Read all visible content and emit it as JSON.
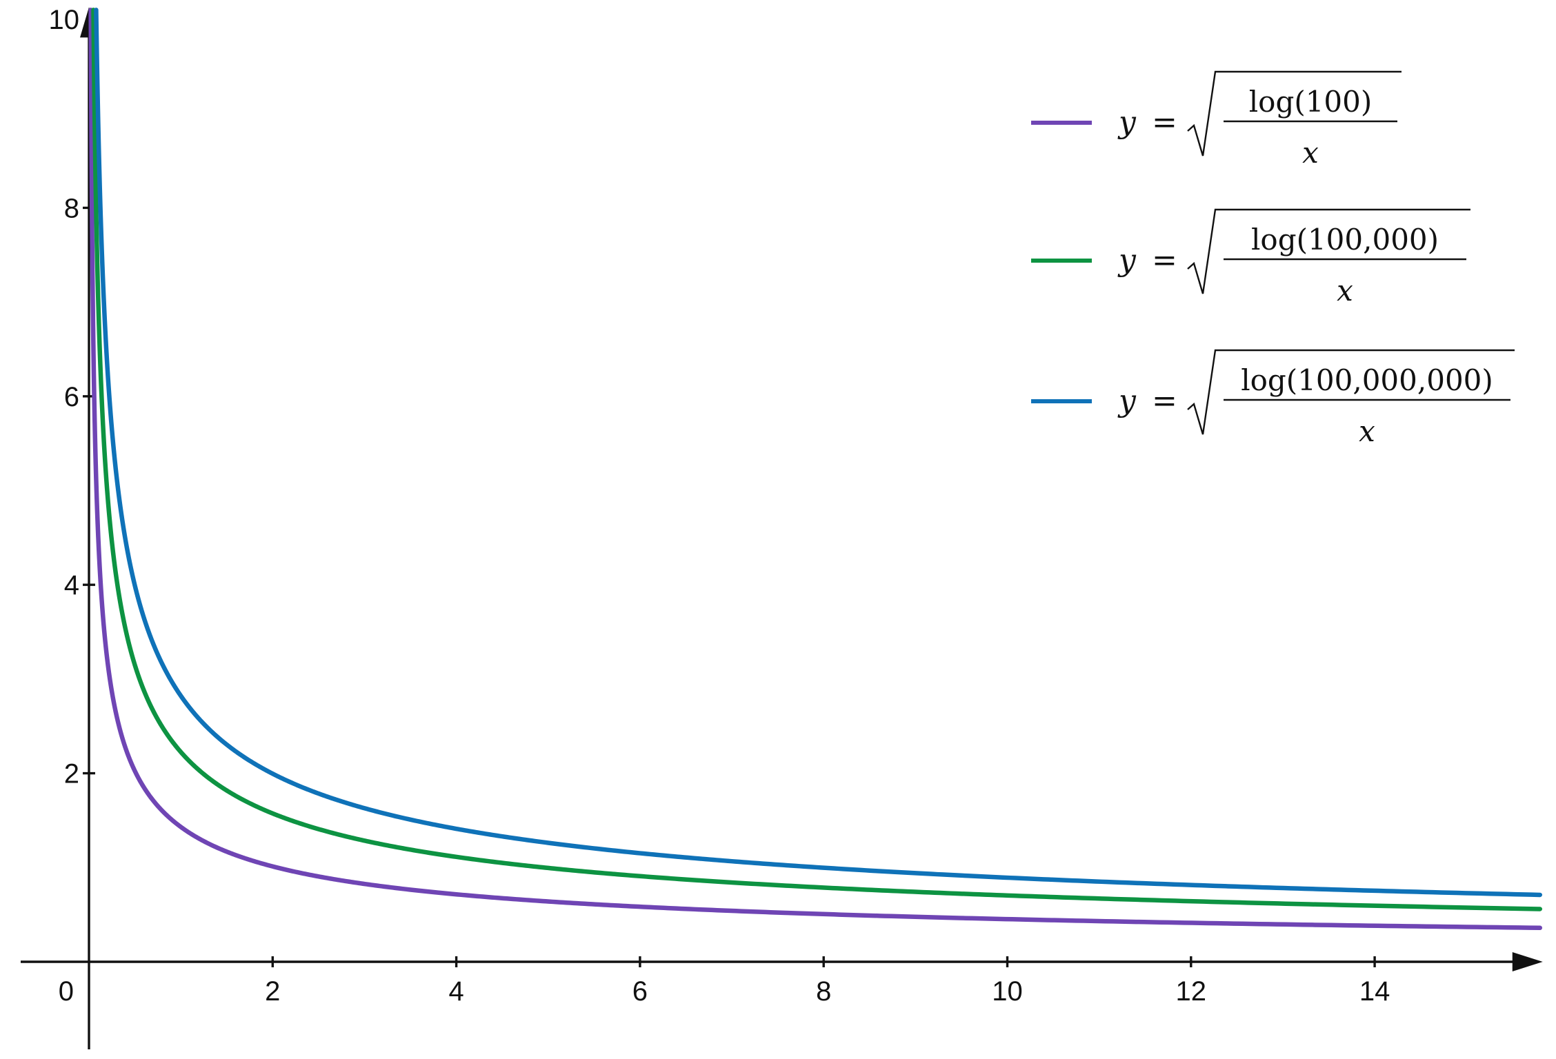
{
  "chart_data": {
    "type": "line",
    "title": "",
    "xlabel": "",
    "ylabel": "",
    "xlim": [
      -1.5,
      15.8
    ],
    "ylim": [
      -0.9,
      10.1
    ],
    "x_ticks": [
      2,
      4,
      6,
      8,
      10,
      12,
      14
    ],
    "y_ticks": [
      2,
      4,
      6,
      8,
      10
    ],
    "origin_label": "0",
    "legend_position": "top-right",
    "grid": false,
    "x_range_plotted": [
      0.03,
      15.8
    ],
    "series": [
      {
        "name": "y = √(log(100)/x)",
        "label_parts": {
          "lhs": "y",
          "eq": "=",
          "numerator": "log(100)",
          "denominator": "x"
        },
        "color": "#6f45b4",
        "x": [
          0.02,
          0.05,
          0.1,
          0.2,
          0.5,
          1,
          2,
          4,
          6,
          8,
          10,
          12,
          14,
          15.8
        ],
        "y": [
          10.0,
          6.32,
          4.47,
          3.16,
          2.0,
          1.41,
          1.0,
          0.71,
          0.58,
          0.5,
          0.45,
          0.41,
          0.38,
          0.36
        ]
      },
      {
        "name": "y = √(log(100,000)/x)",
        "label_parts": {
          "lhs": "y",
          "eq": "=",
          "numerator": "log(100,000)",
          "denominator": "x"
        },
        "color": "#0d9342",
        "x": [
          0.05,
          0.1,
          0.2,
          0.5,
          1,
          2,
          4,
          6,
          8,
          10,
          12,
          14,
          15.8
        ],
        "y": [
          10.0,
          7.07,
          5.0,
          3.16,
          2.24,
          1.58,
          1.12,
          0.91,
          0.79,
          0.71,
          0.65,
          0.6,
          0.56
        ]
      },
      {
        "name": "y = √(log(100,000,000)/x)",
        "label_parts": {
          "lhs": "y",
          "eq": "=",
          "numerator": "log(100,000,000)",
          "denominator": "x"
        },
        "color": "#0f72b8",
        "x": [
          0.08,
          0.1,
          0.2,
          0.5,
          1,
          2,
          4,
          6,
          8,
          10,
          12,
          14,
          15.8
        ],
        "y": [
          10.0,
          8.94,
          6.32,
          4.0,
          2.83,
          2.0,
          1.41,
          1.15,
          1.0,
          0.89,
          0.82,
          0.76,
          0.71
        ]
      }
    ]
  }
}
